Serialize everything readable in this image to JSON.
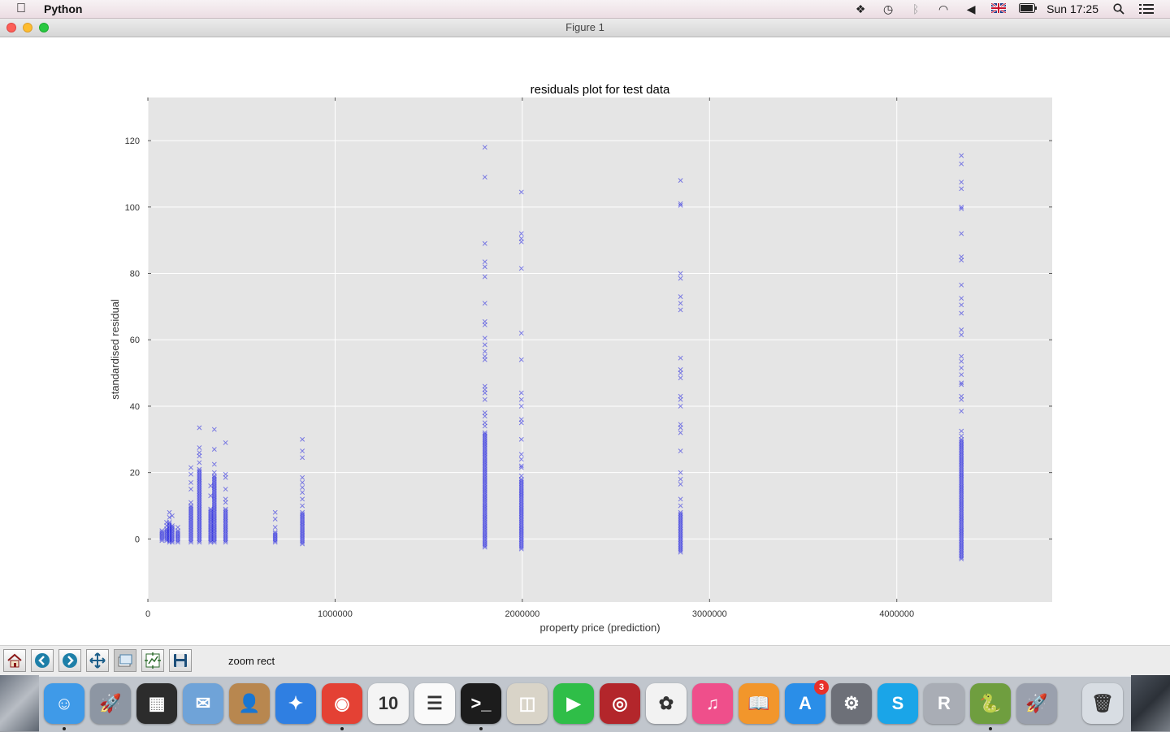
{
  "menubar": {
    "app_name": "Python",
    "clock": "Sun 17:25",
    "icons": [
      "dropbox-icon",
      "time-machine-icon",
      "bluetooth-icon",
      "wifi-icon",
      "volume-icon",
      "flag-uk-icon",
      "battery-icon",
      "spotlight-icon",
      "notification-center-icon"
    ]
  },
  "window": {
    "title": "Figure 1"
  },
  "toolbar": {
    "buttons": [
      "home-icon",
      "back-icon",
      "forward-icon",
      "pan-icon",
      "zoom-icon",
      "subplots-icon",
      "save-icon"
    ],
    "status": "zoom rect"
  },
  "chart_data": {
    "type": "scatter",
    "title": "residuals plot for test data",
    "xlabel": "property price (prediction)",
    "ylabel": "standardised residual",
    "xlim": [
      0,
      4830000
    ],
    "ylim": [
      -19,
      133
    ],
    "xticks": [
      0,
      1000000,
      2000000,
      3000000,
      4000000
    ],
    "xtick_labels": [
      "0",
      "1000000",
      "2000000",
      "3000000",
      "4000000"
    ],
    "yticks": [
      0,
      20,
      40,
      60,
      80,
      100,
      120
    ],
    "ytick_labels": [
      "0",
      "20",
      "40",
      "60",
      "80",
      "100",
      "120"
    ],
    "grid": true,
    "background": "#e5e5e5",
    "marker": "x",
    "marker_color": "#1f1fe0",
    "clusters": [
      {
        "x": 75000,
        "ymin": -0.5,
        "ymax": 2.5,
        "outliers": []
      },
      {
        "x": 100000,
        "ymin": -0.5,
        "ymax": 3,
        "outliers": [
          4,
          5
        ]
      },
      {
        "x": 115000,
        "ymin": -1,
        "ymax": 5,
        "outliers": [
          6.5,
          8
        ]
      },
      {
        "x": 130000,
        "ymin": -1,
        "ymax": 4,
        "outliers": [
          7
        ]
      },
      {
        "x": 160000,
        "ymin": -1,
        "ymax": 2.5,
        "outliers": [
          3.5
        ]
      },
      {
        "x": 230000,
        "ymin": -1,
        "ymax": 10,
        "outliers": [
          11,
          15,
          17,
          19.5,
          21.5
        ]
      },
      {
        "x": 275000,
        "ymin": -1,
        "ymax": 21,
        "outliers": [
          23,
          25,
          26,
          27.5,
          33.5
        ]
      },
      {
        "x": 335000,
        "ymin": -1,
        "ymax": 9,
        "outliers": [
          13,
          16
        ]
      },
      {
        "x": 355000,
        "ymin": -1,
        "ymax": 19,
        "outliers": [
          20,
          22.5,
          27,
          33
        ]
      },
      {
        "x": 415000,
        "ymin": -1,
        "ymax": 9,
        "outliers": [
          11,
          12,
          15,
          18.5,
          19.5,
          29
        ]
      },
      {
        "x": 680000,
        "ymin": -1,
        "ymax": 2,
        "outliers": [
          3.5,
          6,
          8
        ]
      },
      {
        "x": 825000,
        "ymin": -1.5,
        "ymax": 8,
        "outliers": [
          10,
          12,
          14,
          15.5,
          17,
          18.5,
          24.5,
          26.5,
          30
        ]
      },
      {
        "x": 1800000,
        "ymin": -2.5,
        "ymax": 32,
        "outliers": [
          34,
          35,
          37,
          38,
          42,
          44,
          45,
          46,
          54,
          55,
          56.5,
          58.5,
          60.5,
          64.5,
          65.5,
          71,
          79,
          82,
          83.5,
          89,
          109,
          118
        ]
      },
      {
        "x": 1995000,
        "ymin": -3,
        "ymax": 18,
        "outliers": [
          19,
          21.5,
          22,
          24,
          25.5,
          30,
          35,
          36,
          40,
          42,
          44,
          54,
          62,
          81.5,
          89.5,
          90.5,
          92,
          104.5
        ]
      },
      {
        "x": 2845000,
        "ymin": -4,
        "ymax": 8,
        "outliers": [
          10,
          12,
          16.5,
          18,
          20,
          26.5,
          32,
          33.5,
          34.5,
          40,
          42,
          43,
          48.5,
          50,
          51,
          54.5,
          69,
          71,
          73,
          78.5,
          80,
          100.5,
          101,
          108
        ]
      },
      {
        "x": 4345000,
        "ymin": -6,
        "ymax": 30,
        "outliers": [
          31,
          32.5,
          38.5,
          42,
          43,
          46.5,
          47,
          49.5,
          51.5,
          53.5,
          55,
          61.5,
          63,
          68,
          70.5,
          72.5,
          76.5,
          84,
          85,
          92,
          99.5,
          100,
          105.5,
          107.5,
          113,
          115.5
        ]
      }
    ]
  },
  "dock": {
    "items": [
      {
        "icon": "finder-icon",
        "color": "#3f9ae8",
        "glyph": "☺"
      },
      {
        "icon": "launchpad-icon",
        "color": "#8d96a3",
        "glyph": "🚀"
      },
      {
        "icon": "mission-control-icon",
        "color": "#2c2c2c",
        "glyph": "▦"
      },
      {
        "icon": "mail-icon",
        "color": "#6fa3d8",
        "glyph": "✉"
      },
      {
        "icon": "contacts-icon",
        "color": "#b8874f",
        "glyph": "👤"
      },
      {
        "icon": "safari-icon",
        "color": "#2f7fe2",
        "glyph": "✦"
      },
      {
        "icon": "chrome-icon",
        "color": "#e44134",
        "glyph": "◉"
      },
      {
        "icon": "calendar-icon",
        "color": "#f4f4f4",
        "glyph": "10"
      },
      {
        "icon": "reminders-icon",
        "color": "#fafafa",
        "glyph": "☰"
      },
      {
        "icon": "terminal-icon",
        "color": "#1c1c1c",
        "glyph": ">_"
      },
      {
        "icon": "preview-icon",
        "color": "#d9d4c8",
        "glyph": "◫"
      },
      {
        "icon": "facetime-icon",
        "color": "#2fbe48",
        "glyph": "▶"
      },
      {
        "icon": "photo-booth-icon",
        "color": "#b3262b",
        "glyph": "◎"
      },
      {
        "icon": "photos-icon",
        "color": "#f2f2f2",
        "glyph": "✿"
      },
      {
        "icon": "itunes-icon",
        "color": "#ef4f8b",
        "glyph": "♫"
      },
      {
        "icon": "ibooks-icon",
        "color": "#f2962b",
        "glyph": "📖"
      },
      {
        "icon": "app-store-icon",
        "color": "#2a8ee8",
        "glyph": "A",
        "badge": "3"
      },
      {
        "icon": "system-preferences-icon",
        "color": "#6d7078",
        "glyph": "⚙"
      },
      {
        "icon": "skype-icon",
        "color": "#1aa5e8",
        "glyph": "S"
      },
      {
        "icon": "r-icon",
        "color": "#a9adb5",
        "glyph": "R"
      },
      {
        "icon": "idle-python-icon",
        "color": "#6f9e3f",
        "glyph": "🐍"
      },
      {
        "icon": "rocket-icon",
        "color": "#9aa0ad",
        "glyph": "🚀"
      },
      {
        "icon": "trash-icon",
        "color": "#d8dde3",
        "glyph": "🗑"
      }
    ]
  }
}
